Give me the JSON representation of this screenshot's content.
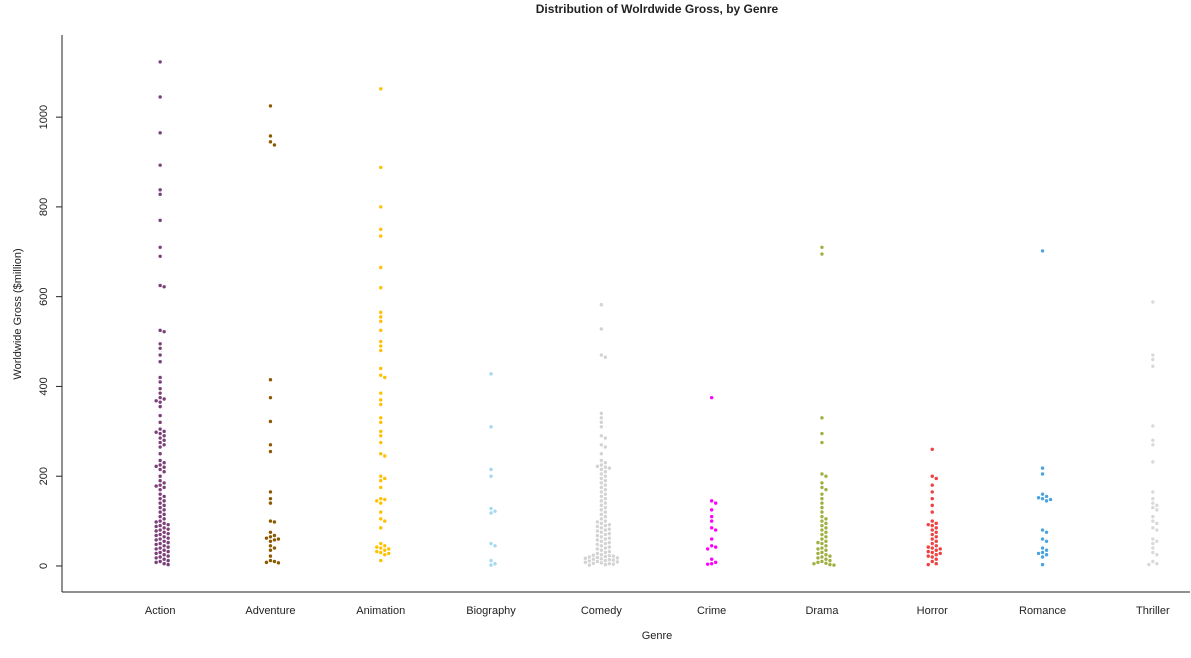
{
  "chart_data": {
    "type": "beeswarm",
    "title": "Distribution of Wolrdwide Gross, by Genre",
    "x_label": "Genre",
    "y_label": "Worldwide Gross ($million)",
    "ylim": [
      -58,
      1183
    ],
    "yticks": [
      0,
      200,
      400,
      600,
      800,
      1000
    ],
    "series": [
      {
        "name": "Action",
        "color": "#7b3f7a",
        "values": [
          1123,
          1045,
          965,
          893,
          838,
          828,
          770,
          710,
          690,
          625,
          622,
          525,
          522,
          495,
          485,
          470,
          455,
          420,
          410,
          395,
          385,
          375,
          372,
          368,
          365,
          355,
          335,
          320,
          305,
          300,
          298,
          295,
          290,
          285,
          280,
          275,
          270,
          265,
          250,
          235,
          230,
          225,
          222,
          220,
          215,
          210,
          200,
          190,
          185,
          180,
          178,
          175,
          170,
          160,
          155,
          150,
          145,
          140,
          135,
          130,
          125,
          120,
          115,
          110,
          105,
          100,
          98,
          95,
          92,
          90,
          88,
          85,
          82,
          80,
          78,
          75,
          72,
          70,
          68,
          65,
          62,
          60,
          58,
          55,
          52,
          50,
          48,
          45,
          42,
          40,
          38,
          35,
          32,
          30,
          28,
          25,
          22,
          20,
          18,
          15,
          12,
          10,
          8,
          5,
          3
        ]
      },
      {
        "name": "Adventure",
        "color": "#8b5a00",
        "values": [
          1025,
          958,
          945,
          938,
          415,
          375,
          322,
          270,
          255,
          165,
          150,
          140,
          100,
          98,
          75,
          68,
          65,
          62,
          60,
          58,
          55,
          45,
          40,
          35,
          22,
          12,
          10,
          8,
          7
        ]
      },
      {
        "name": "Animation",
        "color": "#ffc000",
        "values": [
          1063,
          888,
          800,
          750,
          735,
          665,
          620,
          565,
          555,
          545,
          525,
          500,
          490,
          480,
          440,
          425,
          420,
          385,
          370,
          360,
          330,
          320,
          300,
          290,
          275,
          250,
          245,
          200,
          195,
          190,
          175,
          150,
          148,
          145,
          140,
          120,
          105,
          100,
          85,
          50,
          45,
          42,
          40,
          38,
          35,
          32,
          30,
          28,
          25,
          12
        ]
      },
      {
        "name": "Biography",
        "color": "#a6d8f0",
        "values": [
          428,
          310,
          215,
          200,
          128,
          122,
          118,
          50,
          45,
          12,
          5,
          2
        ]
      },
      {
        "name": "Comedy",
        "color": "#d3d3d3",
        "values": [
          582,
          528,
          470,
          465,
          340,
          330,
          320,
          310,
          290,
          285,
          270,
          265,
          250,
          235,
          230,
          225,
          222,
          220,
          218,
          215,
          210,
          205,
          200,
          195,
          190,
          185,
          180,
          175,
          170,
          165,
          160,
          155,
          150,
          145,
          140,
          135,
          130,
          125,
          120,
          115,
          110,
          105,
          100,
          98,
          95,
          92,
          90,
          88,
          85,
          82,
          80,
          78,
          75,
          72,
          70,
          68,
          65,
          62,
          60,
          58,
          55,
          52,
          50,
          48,
          45,
          42,
          40,
          38,
          35,
          32,
          30,
          28,
          25,
          24,
          23,
          22,
          21,
          20,
          19,
          18,
          17,
          16,
          15,
          14,
          13,
          12,
          11,
          10,
          9,
          8,
          7,
          6,
          5,
          4,
          3,
          2
        ]
      },
      {
        "name": "Crime",
        "color": "#ff00ff",
        "values": [
          375,
          145,
          140,
          125,
          110,
          100,
          85,
          80,
          60,
          45,
          42,
          38,
          15,
          8,
          5,
          4
        ]
      },
      {
        "name": "Drama",
        "color": "#a0b040",
        "values": [
          710,
          695,
          330,
          295,
          275,
          205,
          200,
          185,
          175,
          170,
          160,
          150,
          140,
          130,
          120,
          110,
          105,
          100,
          95,
          90,
          85,
          80,
          75,
          70,
          65,
          60,
          55,
          52,
          50,
          45,
          40,
          38,
          35,
          30,
          28,
          25,
          22,
          20,
          18,
          15,
          12,
          10,
          8,
          6,
          5,
          3,
          2
        ]
      },
      {
        "name": "Horror",
        "color": "#f04040",
        "values": [
          260,
          200,
          195,
          180,
          165,
          150,
          135,
          120,
          100,
          95,
          92,
          90,
          85,
          80,
          75,
          70,
          65,
          60,
          55,
          50,
          45,
          42,
          40,
          38,
          35,
          32,
          30,
          28,
          25,
          22,
          20,
          15,
          10,
          5,
          3
        ]
      },
      {
        "name": "Romance",
        "color": "#4aa3df",
        "values": [
          702,
          218,
          205,
          160,
          155,
          152,
          150,
          148,
          145,
          80,
          75,
          60,
          55,
          40,
          35,
          30,
          28,
          25,
          20,
          3
        ]
      },
      {
        "name": "Thriller",
        "color": "#d9d9d9",
        "values": [
          588,
          470,
          460,
          445,
          312,
          280,
          270,
          232,
          165,
          150,
          140,
          135,
          130,
          125,
          110,
          100,
          95,
          85,
          80,
          60,
          55,
          50,
          40,
          30,
          25,
          10,
          5,
          3
        ]
      }
    ]
  }
}
